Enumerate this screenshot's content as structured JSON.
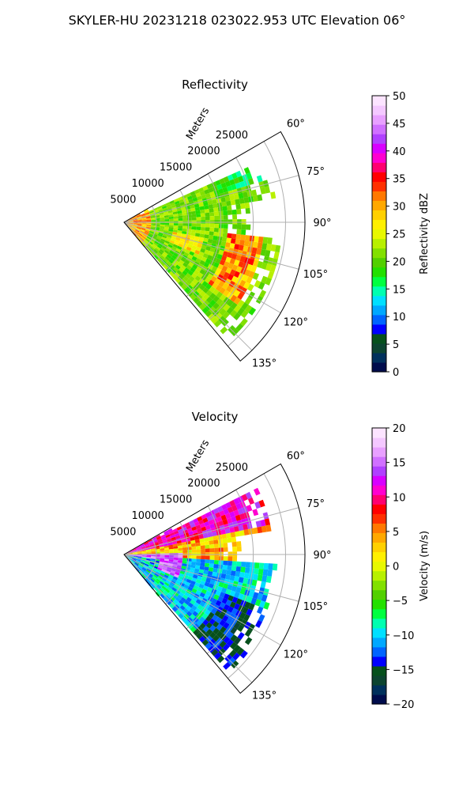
{
  "suptitle": "SKYLER-HU  20231218  023022.953 UTC Elevation 06°",
  "colors": {
    "refl_colormap": [
      "#000c4c",
      "#00305c",
      "#0c4430",
      "#06501c",
      "#0000ff",
      "#0064ff",
      "#00a8ff",
      "#00e0ff",
      "#00ffb0",
      "#00ff40",
      "#22e000",
      "#52d000",
      "#82e000",
      "#b8f000",
      "#e8f800",
      "#fff000",
      "#ffd000",
      "#ffa800",
      "#ff7800",
      "#ff3000",
      "#ff0000",
      "#ff0070",
      "#ff00d0",
      "#d800ff",
      "#b040ff",
      "#d070ff",
      "#e8a0ff",
      "#f4c8ff",
      "#fce4ff"
    ],
    "vel_colormap": [
      "#000c4c",
      "#00305c",
      "#0c4430",
      "#06501c",
      "#0000ff",
      "#0064ff",
      "#00a8ff",
      "#00e0ff",
      "#00ffb0",
      "#00ff40",
      "#22e000",
      "#52d000",
      "#82e000",
      "#b8f000",
      "#e8f800",
      "#fff000",
      "#ffd000",
      "#ffa800",
      "#ff7800",
      "#ff3000",
      "#ff0000",
      "#ff0070",
      "#ff00d0",
      "#d800ff",
      "#b040ff",
      "#d070ff",
      "#e8a0ff",
      "#f4c8ff",
      "#fce4ff"
    ]
  },
  "chart_data": [
    {
      "type": "heatmap",
      "subtype": "polar-sector",
      "title": "Reflectivity",
      "radial_label": "Meters",
      "radial_ticks": [
        5000,
        10000,
        15000,
        20000,
        25000
      ],
      "angle_ticks": [
        "60°",
        "75°",
        "90°",
        "105°",
        "120°",
        "135°"
      ],
      "angle_range_deg": [
        60,
        140
      ],
      "colorbar": {
        "label": "Reflectivity dBZ",
        "range": [
          0,
          50
        ],
        "ticks": [
          0,
          5,
          10,
          15,
          20,
          25,
          30,
          35,
          40,
          45,
          50
        ]
      },
      "field_features": [
        {
          "azimuth": [
            62,
            140
          ],
          "range_m": [
            0,
            4000
          ],
          "value": 28
        },
        {
          "azimuth": [
            95,
            125
          ],
          "range_m": [
            16000,
            21000
          ],
          "value": 30
        },
        {
          "azimuth": [
            62,
            90
          ],
          "range_m": [
            8000,
            22000
          ],
          "value": 20
        }
      ]
    },
    {
      "type": "heatmap",
      "subtype": "polar-sector",
      "title": "Velocity",
      "radial_label": "Meters",
      "radial_ticks": [
        5000,
        10000,
        15000,
        20000,
        25000
      ],
      "angle_ticks": [
        "60°",
        "75°",
        "90°",
        "105°",
        "120°",
        "135°"
      ],
      "angle_range_deg": [
        60,
        140
      ],
      "colorbar": {
        "label": "Velocity (m/s)",
        "range": [
          -20,
          20
        ],
        "ticks": [
          -20,
          -15,
          -10,
          -5,
          0,
          5,
          10,
          15,
          20
        ]
      },
      "field_features": [
        {
          "azimuth": [
            62,
            78
          ],
          "range_m": [
            4000,
            20000
          ],
          "value": 11
        },
        {
          "azimuth": [
            78,
            92
          ],
          "range_m": [
            4000,
            20000
          ],
          "value": 3
        },
        {
          "azimuth": [
            92,
            140
          ],
          "range_m": [
            6000,
            22000
          ],
          "value": -9
        },
        {
          "azimuth": [
            88,
            110
          ],
          "range_m": [
            0,
            8000
          ],
          "value": 14
        }
      ]
    }
  ]
}
